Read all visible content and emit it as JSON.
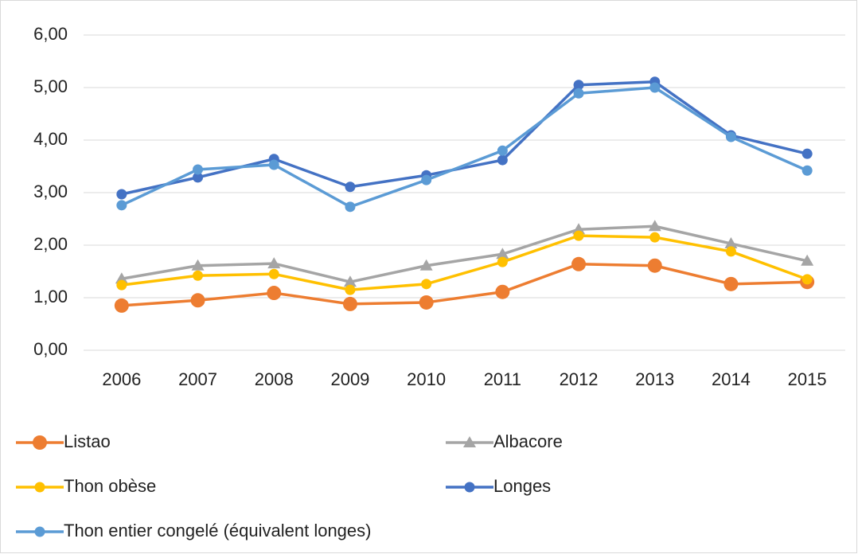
{
  "chart_data": {
    "type": "line",
    "categories": [
      "2006",
      "2007",
      "2008",
      "2009",
      "2010",
      "2011",
      "2012",
      "2013",
      "2014",
      "2015"
    ],
    "ylim": [
      0,
      6
    ],
    "yticks": [
      {
        "value": 0,
        "label": "0,00"
      },
      {
        "value": 1,
        "label": "1,00"
      },
      {
        "value": 2,
        "label": "2,00"
      },
      {
        "value": 3,
        "label": "3,00"
      },
      {
        "value": 4,
        "label": "4,00"
      },
      {
        "value": 5,
        "label": "5,00"
      },
      {
        "value": 6,
        "label": "6,00"
      }
    ],
    "grid": true,
    "legend": "bottom",
    "series": [
      {
        "name": "Listao",
        "color": "#ed7d31",
        "marker": "circle",
        "values": [
          0.85,
          0.95,
          1.09,
          0.88,
          0.91,
          1.11,
          1.64,
          1.61,
          1.26,
          1.3
        ]
      },
      {
        "name": "Albacore",
        "color": "#a5a5a5",
        "marker": "triangle",
        "values": [
          1.36,
          1.61,
          1.65,
          1.3,
          1.61,
          1.83,
          2.3,
          2.36,
          2.03,
          1.7
        ]
      },
      {
        "name": "Thon obèse",
        "color": "#ffc000",
        "marker": "circle",
        "values": [
          1.24,
          1.42,
          1.45,
          1.15,
          1.26,
          1.68,
          2.18,
          2.15,
          1.88,
          1.35
        ]
      },
      {
        "name": "Longes",
        "color": "#4472c4",
        "marker": "circle",
        "values": [
          2.97,
          3.29,
          3.64,
          3.11,
          3.33,
          3.62,
          5.05,
          5.11,
          4.09,
          3.74
        ]
      },
      {
        "name": "Thon entier congelé (équivalent longes)",
        "color": "#5b9bd5",
        "marker": "circle",
        "values": [
          2.76,
          3.44,
          3.53,
          2.73,
          3.24,
          3.8,
          4.89,
          5.0,
          4.06,
          3.42
        ]
      }
    ]
  }
}
